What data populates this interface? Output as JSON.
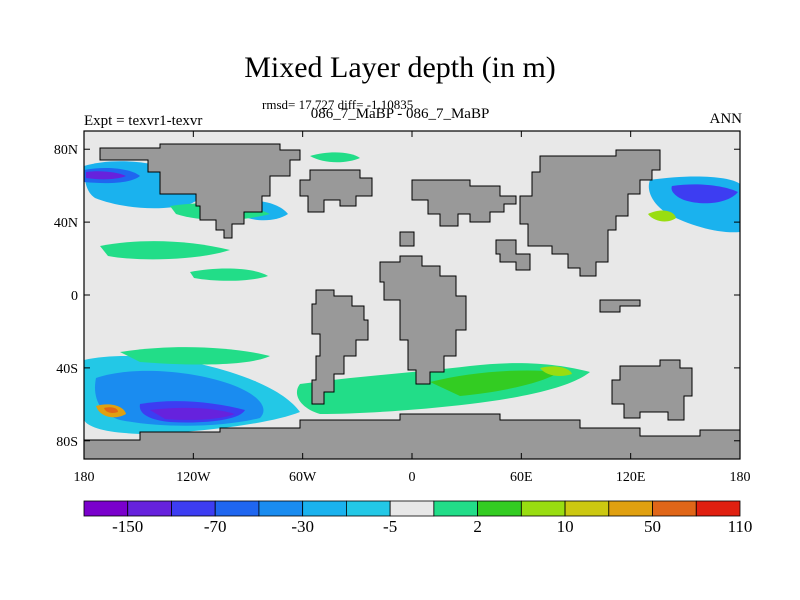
{
  "title": "Mixed Layer depth (in m)",
  "stats": "rmsd= 17.727 diff= -1.10835",
  "subtitle": "086_7_MaBP - 086_7_MaBP",
  "left_label": "Expt = texvr1-texvr",
  "right_label": "ANN",
  "axes": {
    "x_ticks": [
      "180",
      "120W",
      "60W",
      "0",
      "60E",
      "120E",
      "180"
    ],
    "y_ticks": [
      "80N",
      "40N",
      "0",
      "40S",
      "80S"
    ]
  },
  "colorbar": {
    "colors": [
      "#7a00cc",
      "#6622dd",
      "#3d3df2",
      "#1f66f0",
      "#1a8cf0",
      "#1ab2ee",
      "#23c8e6",
      "#e8e8e8",
      "#22dd88",
      "#33cc22",
      "#99dd11",
      "#ccc811",
      "#e0a010",
      "#e06618",
      "#e02010"
    ],
    "labels": [
      "-150",
      "-70",
      "-30",
      "-5",
      "2",
      "10",
      "50",
      "110"
    ]
  },
  "colors": {
    "land": "#999999",
    "background_field": "#e8e8e8",
    "frame": "#000000"
  }
}
